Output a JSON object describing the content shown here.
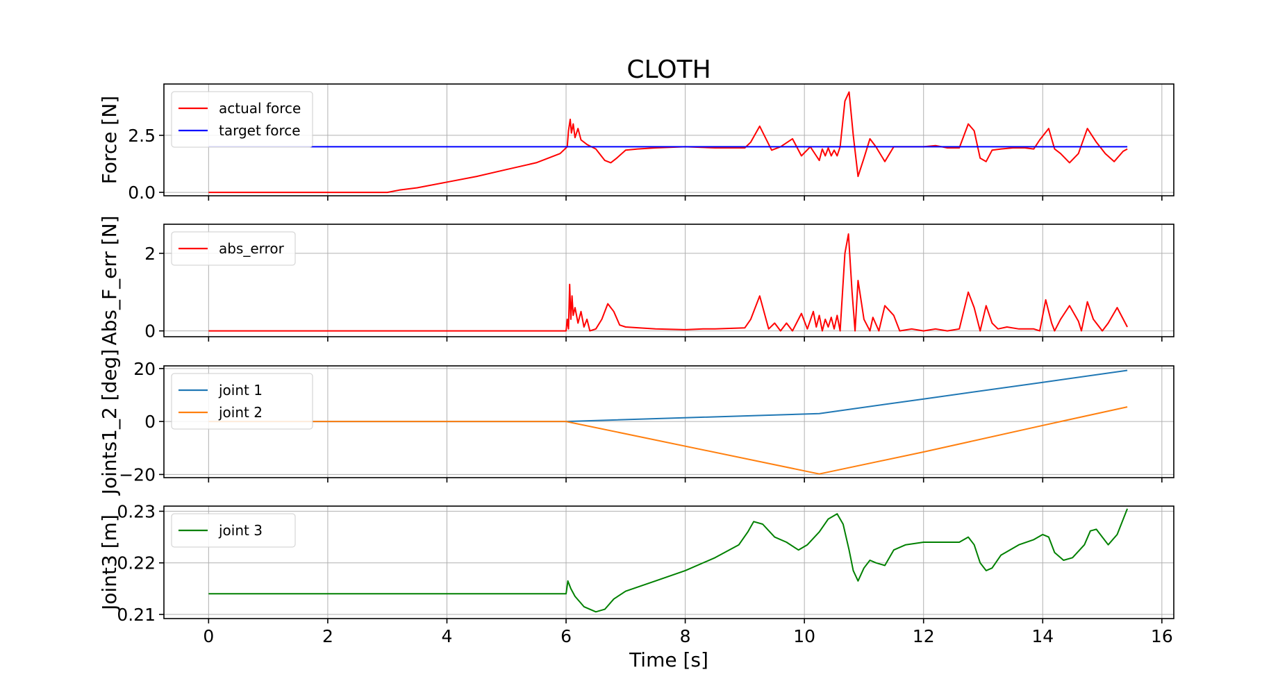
{
  "title": "CLOTH",
  "xlabel": "Time [s]",
  "xticks": [
    "0",
    "2",
    "4",
    "6",
    "8",
    "10",
    "12",
    "14",
    "16"
  ],
  "xlim": [
    -0.75,
    16.2
  ],
  "chart_data": [
    {
      "type": "line",
      "ylabel": "Force [N]",
      "ylim": [
        -0.15,
        4.75
      ],
      "yticks": [
        0.0,
        2.5
      ],
      "ytick_labels": [
        "0.0",
        "2.5"
      ],
      "grid": true,
      "legend": "top-left",
      "series": [
        {
          "name": "actual force",
          "color": "#ff0000",
          "x": [
            0,
            3.0,
            3.2,
            3.5,
            4.0,
            4.5,
            5.0,
            5.5,
            5.9,
            6.02,
            6.04,
            6.07,
            6.09,
            6.12,
            6.15,
            6.2,
            6.25,
            6.35,
            6.5,
            6.65,
            6.75,
            6.85,
            7.0,
            7.2,
            7.5,
            8.0,
            8.5,
            9.0,
            9.1,
            9.25,
            9.45,
            9.6,
            9.8,
            9.95,
            10.1,
            10.2,
            10.25,
            10.3,
            10.35,
            10.4,
            10.45,
            10.5,
            10.55,
            10.6,
            10.68,
            10.75,
            10.82,
            10.9,
            11.0,
            11.1,
            11.2,
            11.35,
            11.5,
            11.7,
            12.0,
            12.2,
            12.4,
            12.6,
            12.75,
            12.85,
            12.95,
            13.05,
            13.15,
            13.3,
            13.5,
            13.7,
            13.85,
            13.95,
            14.1,
            14.2,
            14.3,
            14.45,
            14.6,
            14.75,
            14.9,
            15.05,
            15.2,
            15.35,
            15.42
          ],
          "y": [
            0,
            0,
            0.1,
            0.2,
            0.45,
            0.7,
            1.0,
            1.3,
            1.7,
            2.0,
            2.7,
            3.2,
            2.6,
            3.0,
            2.4,
            2.8,
            2.3,
            2.1,
            1.9,
            1.4,
            1.3,
            1.5,
            1.85,
            1.9,
            1.95,
            2.0,
            1.95,
            1.95,
            2.2,
            2.9,
            1.85,
            2.0,
            2.35,
            1.6,
            2.0,
            1.6,
            1.4,
            1.9,
            1.6,
            1.95,
            1.6,
            1.85,
            1.6,
            2.0,
            4.0,
            4.4,
            2.5,
            0.7,
            1.5,
            2.35,
            2.0,
            1.35,
            2.0,
            2.0,
            2.0,
            2.05,
            1.95,
            1.95,
            3.0,
            2.7,
            1.5,
            1.35,
            1.85,
            1.9,
            1.95,
            1.95,
            1.9,
            2.3,
            2.8,
            1.9,
            1.7,
            1.3,
            1.7,
            2.8,
            2.2,
            1.7,
            1.35,
            1.8,
            1.9
          ]
        },
        {
          "name": "target force",
          "color": "#0000ff",
          "x": [
            0,
            15.42
          ],
          "y": [
            2.0,
            2.0
          ]
        }
      ]
    },
    {
      "type": "line",
      "ylabel": "Abs_F_err [N]",
      "ylim": [
        -0.15,
        2.75
      ],
      "yticks": [
        0,
        2
      ],
      "ytick_labels": [
        "0",
        "2"
      ],
      "grid": true,
      "legend": "top-left",
      "series": [
        {
          "name": "abs_error",
          "color": "#ff0000",
          "x": [
            0,
            6.0,
            6.02,
            6.04,
            6.06,
            6.08,
            6.1,
            6.12,
            6.15,
            6.2,
            6.25,
            6.3,
            6.35,
            6.4,
            6.5,
            6.6,
            6.7,
            6.8,
            6.9,
            7.0,
            7.5,
            8.0,
            8.3,
            8.5,
            9.0,
            9.1,
            9.25,
            9.4,
            9.5,
            9.6,
            9.7,
            9.8,
            9.95,
            10.05,
            10.15,
            10.2,
            10.25,
            10.3,
            10.35,
            10.4,
            10.45,
            10.5,
            10.55,
            10.6,
            10.68,
            10.74,
            10.8,
            10.85,
            10.9,
            11.0,
            11.1,
            11.15,
            11.25,
            11.35,
            11.5,
            11.6,
            11.8,
            12.0,
            12.2,
            12.4,
            12.6,
            12.75,
            12.85,
            12.95,
            13.05,
            13.15,
            13.25,
            13.4,
            13.6,
            13.85,
            13.95,
            14.05,
            14.15,
            14.2,
            14.3,
            14.45,
            14.6,
            14.65,
            14.75,
            14.85,
            15.0,
            15.1,
            15.25,
            15.42
          ],
          "y": [
            0,
            0,
            0.3,
            0.05,
            1.2,
            0.3,
            0.9,
            0.4,
            0.6,
            0.2,
            0.5,
            0.1,
            0.3,
            0.0,
            0.05,
            0.3,
            0.7,
            0.5,
            0.15,
            0.1,
            0.05,
            0.03,
            0.05,
            0.05,
            0.08,
            0.3,
            0.9,
            0.05,
            0.2,
            0.0,
            0.2,
            0.0,
            0.45,
            0.05,
            0.5,
            0.1,
            0.4,
            0.0,
            0.3,
            0.1,
            0.35,
            0.05,
            0.4,
            0.0,
            2.0,
            2.5,
            1.0,
            0.0,
            1.3,
            0.3,
            0.0,
            0.35,
            0.0,
            0.65,
            0.4,
            0.0,
            0.05,
            0.0,
            0.05,
            0.0,
            0.05,
            1.0,
            0.6,
            0.0,
            0.65,
            0.2,
            0.05,
            0.1,
            0.05,
            0.05,
            0.0,
            0.8,
            0.2,
            0.0,
            0.3,
            0.65,
            0.25,
            0.0,
            0.75,
            0.3,
            0.0,
            0.2,
            0.6,
            0.1
          ]
        }
      ]
    },
    {
      "type": "line",
      "ylabel": "Joints1_2 [deg]",
      "ylim": [
        -21.2,
        21.0
      ],
      "yticks": [
        -20,
        0,
        20
      ],
      "ytick_labels": [
        "−20",
        "0",
        "20"
      ],
      "grid": true,
      "legend": "top-left",
      "series": [
        {
          "name": "joint 1",
          "color": "#1f77b4",
          "x": [
            0,
            6.0,
            10.25,
            12.0,
            14.0,
            15.42
          ],
          "y": [
            0,
            0,
            3.0,
            8.5,
            14.8,
            19.3
          ]
        },
        {
          "name": "joint 2",
          "color": "#ff7f0e",
          "x": [
            0,
            6.0,
            10.25,
            12.0,
            14.0,
            15.42
          ],
          "y": [
            0,
            0,
            -19.8,
            -11.5,
            -1.5,
            5.5
          ]
        }
      ]
    },
    {
      "type": "line",
      "ylabel": "Joint3 [m]",
      "ylim": [
        0.2092,
        0.231
      ],
      "yticks": [
        0.21,
        0.22,
        0.23
      ],
      "ytick_labels": [
        "0.21",
        "0.22",
        "0.23"
      ],
      "grid": true,
      "legend": "top-left",
      "series": [
        {
          "name": "joint 3",
          "color": "#008000",
          "x": [
            0,
            6.0,
            6.03,
            6.08,
            6.15,
            6.3,
            6.5,
            6.65,
            6.8,
            7.0,
            7.5,
            8.0,
            8.5,
            8.9,
            9.05,
            9.15,
            9.3,
            9.5,
            9.7,
            9.9,
            10.05,
            10.25,
            10.4,
            10.55,
            10.65,
            10.75,
            10.82,
            10.9,
            11.0,
            11.1,
            11.2,
            11.35,
            11.5,
            11.7,
            12.0,
            12.3,
            12.6,
            12.75,
            12.85,
            12.95,
            13.05,
            13.15,
            13.3,
            13.6,
            13.85,
            14.0,
            14.1,
            14.2,
            14.35,
            14.5,
            14.7,
            14.8,
            14.9,
            15.0,
            15.1,
            15.25,
            15.42
          ],
          "y": [
            0.214,
            0.214,
            0.2165,
            0.215,
            0.2135,
            0.2115,
            0.2105,
            0.211,
            0.213,
            0.2145,
            0.2165,
            0.2185,
            0.221,
            0.2235,
            0.226,
            0.228,
            0.2275,
            0.225,
            0.224,
            0.2225,
            0.2235,
            0.226,
            0.2285,
            0.2295,
            0.2275,
            0.2225,
            0.2185,
            0.2165,
            0.219,
            0.2205,
            0.22,
            0.2195,
            0.2225,
            0.2235,
            0.224,
            0.224,
            0.224,
            0.225,
            0.2235,
            0.22,
            0.2185,
            0.219,
            0.2215,
            0.2235,
            0.2245,
            0.2255,
            0.225,
            0.222,
            0.2205,
            0.221,
            0.2235,
            0.2262,
            0.2265,
            0.225,
            0.2235,
            0.2255,
            0.2305
          ]
        }
      ]
    }
  ]
}
